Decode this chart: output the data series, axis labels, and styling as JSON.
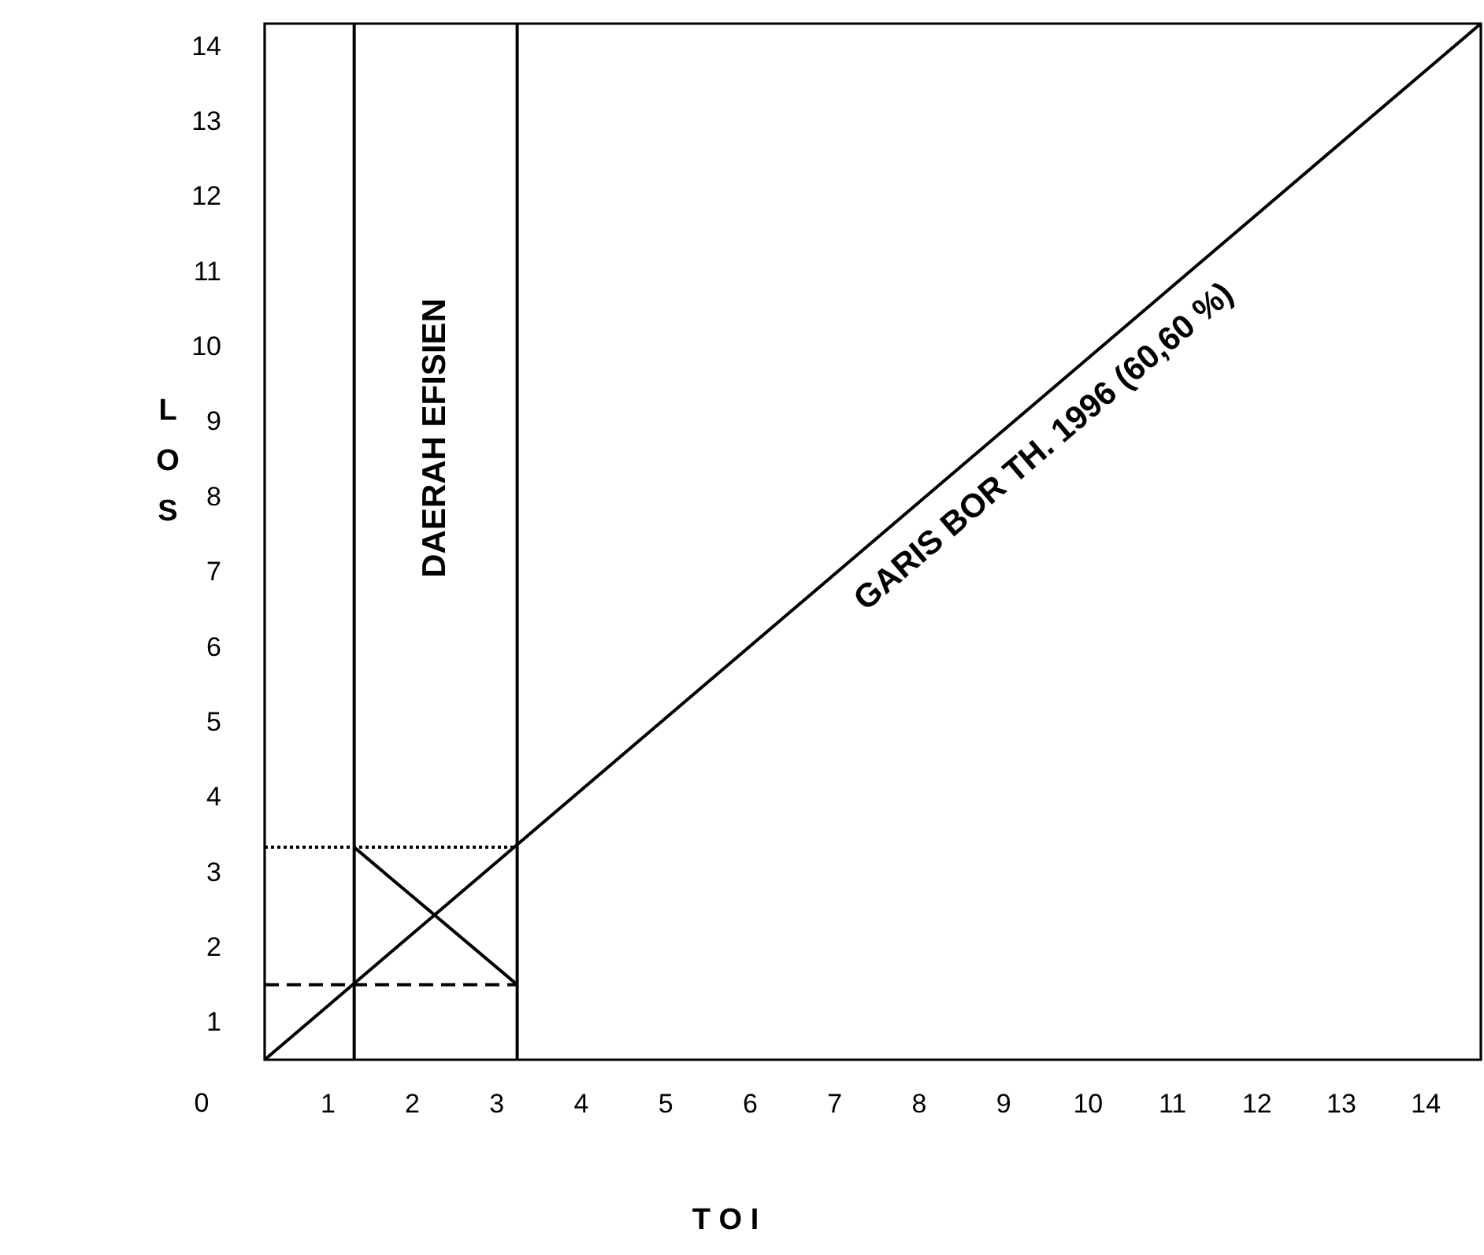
{
  "chart_data": {
    "type": "line",
    "xlabel": "T O I",
    "ylabel": "L O S",
    "xlim": [
      0.26,
      14.66
    ],
    "ylim": [
      0.5,
      14.3
    ],
    "xticks": [
      1,
      2,
      3,
      4,
      5,
      6,
      7,
      8,
      9,
      10,
      11,
      12,
      13,
      14
    ],
    "yticks": [
      1,
      2,
      3,
      4,
      5,
      6,
      7,
      8,
      9,
      10,
      11,
      12,
      13,
      14
    ],
    "series": [
      {
        "name": "GARIS BOR TH. 1996 (60,60 %)",
        "color": "#000000",
        "x": [
          0.26,
          14.66
        ],
        "values": [
          0.5,
          14.3
        ]
      },
      {
        "color": "#000000",
        "x": [
          0.26,
          3.25
        ],
        "values": [
          3.33,
          3.33
        ],
        "line_style": "dotted"
      },
      {
        "color": "#000000",
        "x": [
          0.26,
          3.25
        ],
        "values": [
          1.5,
          1.5
        ],
        "line_style": "dashed"
      },
      {
        "color": "#000000",
        "x": [
          1.32,
          3.25
        ],
        "values": [
          3.33,
          1.5
        ]
      }
    ],
    "ref_lines": [
      {
        "axis": "x",
        "value": 1.32
      },
      {
        "axis": "x",
        "value": 3.25
      }
    ],
    "annotations": [
      "0",
      "DAERAH  EFISIEN"
    ]
  }
}
